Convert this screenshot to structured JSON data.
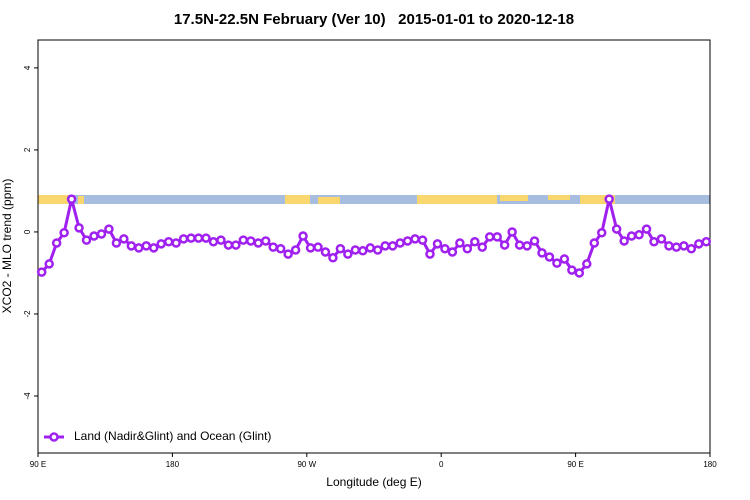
{
  "chart_data": {
    "type": "line",
    "title": "17.5N-22.5N February (Ver 10)   2015-01-01 to 2020-12-18",
    "x_label": "Longitude (deg E)",
    "y_label": "XCO2 - MLO trend (ppm)",
    "xlim": [
      90,
      540
    ],
    "ylim": [
      -5.39,
      4.68
    ],
    "xticks": [
      {
        "value": 90,
        "label": "90 E"
      },
      {
        "value": 180,
        "label": "180"
      },
      {
        "value": 270,
        "label": "90 W"
      },
      {
        "value": 360,
        "label": "0"
      },
      {
        "value": 450,
        "label": "90 E"
      },
      {
        "value": 540,
        "label": "180"
      }
    ],
    "yticks": [
      -4,
      -2,
      0,
      2,
      4
    ],
    "grid": false,
    "legend": "lower left",
    "x": [
      92.5,
      97.5,
      102.5,
      107.5,
      112.5,
      117.5,
      122.5,
      127.5,
      132.5,
      137.5,
      142.5,
      147.5,
      152.5,
      157.5,
      162.5,
      167.5,
      172.5,
      177.5,
      182.5,
      187.5,
      192.5,
      197.5,
      202.5,
      207.5,
      212.5,
      217.5,
      222.5,
      227.5,
      232.5,
      237.5,
      242.5,
      247.5,
      252.5,
      257.5,
      262.5,
      267.5,
      272.5,
      277.5,
      282.5,
      287.5,
      292.5,
      297.5,
      302.5,
      307.5,
      312.5,
      317.5,
      322.5,
      327.5,
      332.5,
      337.5,
      342.5,
      347.5,
      352.5,
      357.5,
      362.5,
      367.5,
      372.5,
      377.5,
      382.5,
      387.5,
      392.5,
      397.5,
      402.5,
      407.5,
      412.5,
      417.5,
      422.5,
      427.5,
      432.5,
      437.5,
      442.5,
      447.5,
      452.5,
      457.5,
      462.5,
      467.5,
      472.5,
      477.5,
      482.5,
      487.5,
      492.5,
      497.5,
      502.5,
      507.5,
      512.5,
      517.5,
      522.5,
      527.5,
      532.5,
      537.5
    ],
    "series": [
      {
        "name": "Land (Nadir&Glint) and Ocean (Glint)",
        "color": "#a020f0",
        "values": [
          -0.98,
          -0.78,
          -0.27,
          -0.02,
          0.8,
          0.1,
          -0.2,
          -0.1,
          -0.05,
          0.07,
          -0.27,
          -0.17,
          -0.34,
          -0.39,
          -0.34,
          -0.39,
          -0.29,
          -0.24,
          -0.27,
          -0.17,
          -0.15,
          -0.15,
          -0.15,
          -0.24,
          -0.2,
          -0.32,
          -0.32,
          -0.2,
          -0.22,
          -0.27,
          -0.22,
          -0.37,
          -0.41,
          -0.54,
          -0.44,
          -0.1,
          -0.39,
          -0.37,
          -0.49,
          -0.63,
          -0.41,
          -0.54,
          -0.44,
          -0.46,
          -0.39,
          -0.44,
          -0.34,
          -0.34,
          -0.27,
          -0.22,
          -0.17,
          -0.2,
          -0.54,
          -0.29,
          -0.41,
          -0.49,
          -0.27,
          -0.41,
          -0.24,
          -0.37,
          -0.12,
          -0.12,
          -0.32,
          0.0,
          -0.32,
          -0.34,
          -0.22,
          -0.51,
          -0.61,
          -0.76,
          -0.66,
          -0.93,
          -1.0,
          -0.78,
          -0.27,
          -0.02,
          0.8,
          0.07,
          -0.22,
          -0.1,
          -0.07,
          0.07,
          -0.24,
          -0.17,
          -0.34,
          -0.37,
          -0.34,
          -0.41,
          -0.29,
          -0.24
        ]
      }
    ]
  }
}
